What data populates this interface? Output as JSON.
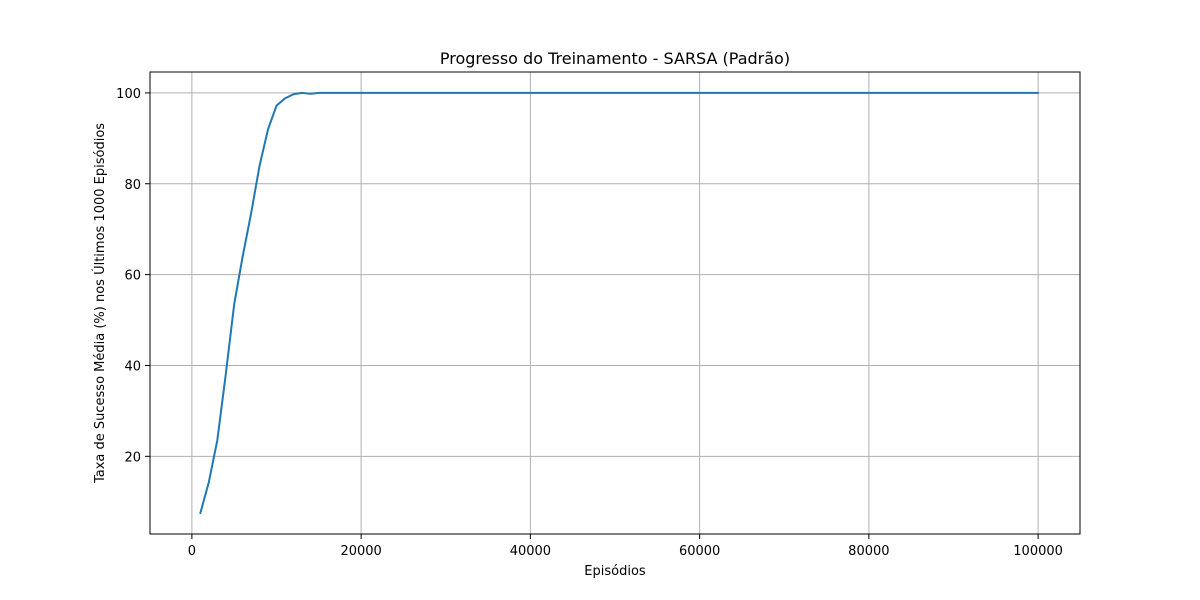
{
  "chart_data": {
    "type": "line",
    "title": "Progresso do Treinamento - SARSA (Padrão)",
    "xlabel": "Episódios",
    "ylabel": "Taxa de Sucesso Média (%) nos Últimos 1000 Episódios",
    "xlim": [
      -4950,
      104950
    ],
    "ylim": [
      2.9,
      104.6
    ],
    "grid": true,
    "x_ticks": [
      {
        "value": 0,
        "label": "0"
      },
      {
        "value": 20000,
        "label": "20000"
      },
      {
        "value": 40000,
        "label": "40000"
      },
      {
        "value": 60000,
        "label": "60000"
      },
      {
        "value": 80000,
        "label": "80000"
      },
      {
        "value": 100000,
        "label": "100000"
      }
    ],
    "y_ticks": [
      {
        "value": 20,
        "label": "20"
      },
      {
        "value": 40,
        "label": "40"
      },
      {
        "value": 60,
        "label": "60"
      },
      {
        "value": 80,
        "label": "80"
      },
      {
        "value": 100,
        "label": "100"
      }
    ],
    "series": [
      {
        "color": "#1f77b4",
        "points": [
          [
            1000,
            7.5
          ],
          [
            2000,
            14.3
          ],
          [
            3000,
            23.5
          ],
          [
            4000,
            38.0
          ],
          [
            5000,
            53.5
          ],
          [
            6000,
            64.0
          ],
          [
            7000,
            73.5
          ],
          [
            8000,
            84.0
          ],
          [
            9000,
            92.0
          ],
          [
            10000,
            97.2
          ],
          [
            11000,
            98.8
          ],
          [
            12000,
            99.7
          ],
          [
            13000,
            100.0
          ],
          [
            14000,
            99.8
          ],
          [
            15000,
            100.0
          ],
          [
            20000,
            100.0
          ],
          [
            30000,
            100.0
          ],
          [
            40000,
            100.0
          ],
          [
            50000,
            100.0
          ],
          [
            60000,
            100.0
          ],
          [
            70000,
            100.0
          ],
          [
            80000,
            100.0
          ],
          [
            90000,
            100.0
          ],
          [
            100000,
            100.0
          ]
        ]
      }
    ]
  }
}
